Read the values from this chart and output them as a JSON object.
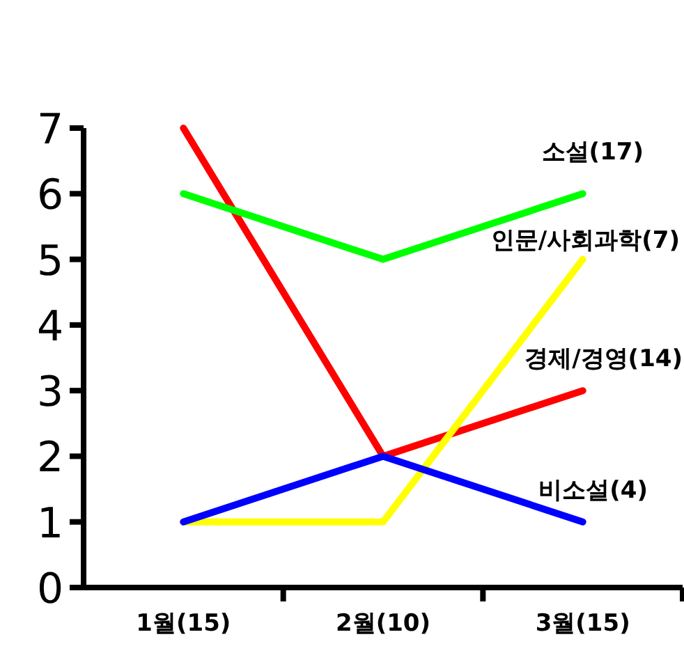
{
  "chart_data": {
    "type": "line",
    "categories": [
      "1월(15)",
      "2월(10)",
      "3월(15)"
    ],
    "series": [
      {
        "name": "경제/경영(14)",
        "color": "#ff0000",
        "values": [
          7,
          2,
          3
        ]
      },
      {
        "name": "소설(17)",
        "color": "#00ff00",
        "values": [
          6,
          5,
          6
        ]
      },
      {
        "name": "인문/사회과학(7)",
        "color": "#ffff00",
        "values": [
          1,
          1,
          5
        ]
      },
      {
        "name": "비소설(4)",
        "color": "#0000ff",
        "values": [
          1,
          2,
          1
        ]
      }
    ],
    "ylim": [
      0,
      7
    ],
    "yticks": [
      0,
      1,
      2,
      3,
      4,
      5,
      6,
      7
    ],
    "grid": false,
    "marker": "none",
    "line_style": "solid"
  }
}
